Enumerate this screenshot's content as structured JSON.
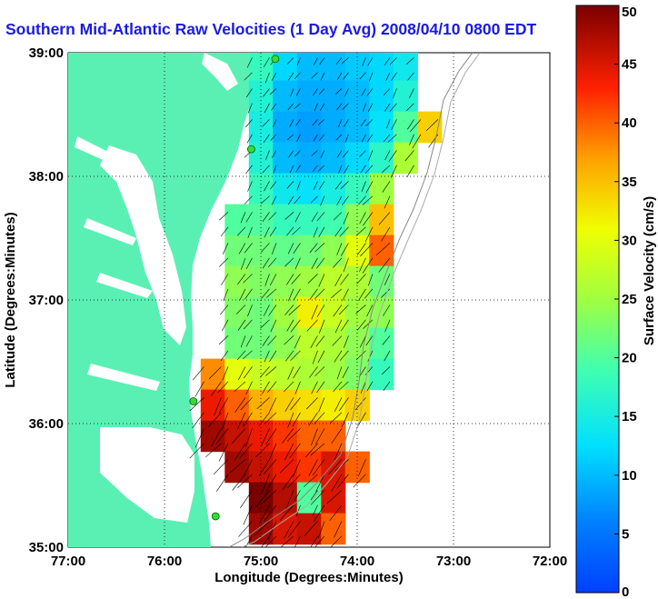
{
  "title": "Southern Mid-Atlantic Raw Velocities (1 Day Avg) 2008/04/10 0800 EDT",
  "map": {
    "xlabel": "Longitude (Degrees:Minutes)",
    "ylabel": "Latitude (Degrees:Minutes)",
    "lon_ticks": [
      "77:00",
      "76:00",
      "75:00",
      "74:00",
      "73:00",
      "72:00"
    ],
    "lat_ticks": [
      "39:00",
      "38:00",
      "37:00",
      "36:00",
      "35:00"
    ],
    "lon_range": [
      -77,
      -72
    ],
    "lat_range": [
      35,
      39
    ],
    "grid": "dotted",
    "land_color": "#5af0b4",
    "water_color": "#ffffff",
    "station_marker_color": "#33dd33",
    "stations": [
      {
        "lon": -74.85,
        "lat": 38.95
      },
      {
        "lon": -75.1,
        "lat": 38.22
      },
      {
        "lon": -75.7,
        "lat": 36.18
      },
      {
        "lon": -75.47,
        "lat": 35.25
      }
    ]
  },
  "colorbar": {
    "label": "Surface Velocity (cm/s)",
    "min": 0,
    "max": 50,
    "ticks": [
      "50",
      "45",
      "40",
      "35",
      "30",
      "25",
      "20",
      "15",
      "10",
      "5",
      "0"
    ],
    "colormap": "jet"
  },
  "chart_data": {
    "type": "heatmap",
    "title": "Southern Mid-Atlantic Raw Velocities (1 Day Avg) 2008/04/10 0800 EDT",
    "xlabel": "Longitude (Degrees:Minutes)",
    "ylabel": "Latitude (Degrees:Minutes)",
    "xlim": [
      -77,
      -72
    ],
    "ylim": [
      35,
      39
    ],
    "value_label": "Surface Velocity (cm/s)",
    "value_range": [
      0,
      50
    ],
    "grid_lon": [
      -75.5,
      -75.25,
      -75.0,
      -74.75,
      -74.5,
      -74.25,
      -74.0,
      -73.75,
      -73.5,
      -73.25
    ],
    "grid_lat": [
      38.9,
      38.65,
      38.4,
      38.15,
      37.9,
      37.65,
      37.4,
      37.15,
      36.9,
      36.65,
      36.4,
      36.15,
      35.9,
      35.65,
      35.4,
      35.15
    ],
    "speed": [
      [
        null,
        null,
        18,
        12,
        10,
        10,
        11,
        12,
        14,
        null
      ],
      [
        null,
        null,
        16,
        10,
        9,
        9,
        10,
        12,
        16,
        null
      ],
      [
        null,
        null,
        15,
        9,
        8,
        9,
        10,
        13,
        20,
        34
      ],
      [
        null,
        null,
        16,
        10,
        9,
        10,
        12,
        17,
        26,
        null
      ],
      [
        null,
        null,
        18,
        14,
        13,
        15,
        18,
        25,
        null,
        null
      ],
      [
        null,
        20,
        20,
        18,
        18,
        19,
        24,
        35,
        null,
        null
      ],
      [
        null,
        22,
        22,
        21,
        22,
        24,
        30,
        40,
        null,
        null
      ],
      [
        null,
        24,
        23,
        24,
        25,
        27,
        26,
        22,
        null,
        null
      ],
      [
        null,
        23,
        22,
        25,
        32,
        28,
        25,
        24,
        null,
        null
      ],
      [
        null,
        22,
        22,
        24,
        27,
        26,
        24,
        20,
        null,
        null
      ],
      [
        38,
        30,
        28,
        27,
        26,
        25,
        23,
        18,
        null,
        null
      ],
      [
        44,
        40,
        36,
        34,
        33,
        32,
        34,
        null,
        null,
        null
      ],
      [
        48,
        46,
        44,
        42,
        40,
        40,
        null,
        null,
        null,
        null
      ],
      [
        null,
        48,
        46,
        44,
        42,
        45,
        40,
        null,
        null,
        null
      ],
      [
        null,
        null,
        50,
        47,
        20,
        45,
        null,
        null,
        null,
        null
      ],
      [
        null,
        null,
        48,
        45,
        46,
        40,
        null,
        null,
        null,
        null
      ]
    ],
    "direction_note": "vectors point predominantly south-southwest (arrow field)"
  }
}
